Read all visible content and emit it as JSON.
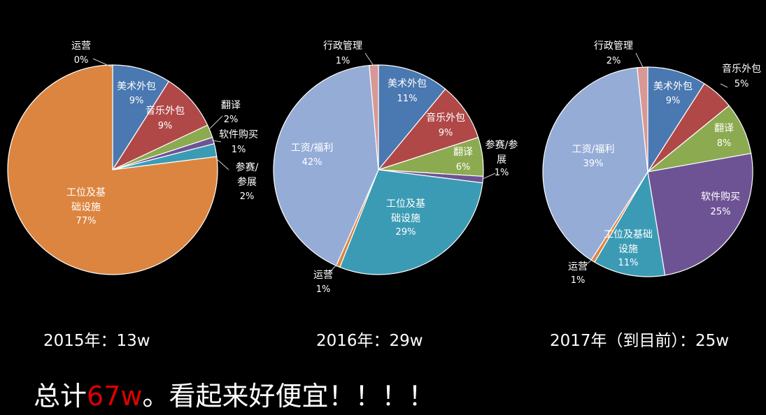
{
  "chart_data": [
    {
      "type": "pie",
      "caption": "2015年：13w",
      "slices": [
        {
          "label": "运营",
          "value": 0,
          "pct": "0%",
          "color": "#f0f0f0"
        },
        {
          "label": "美术外包",
          "value": 9,
          "pct": "9%",
          "color": "#4a78b0"
        },
        {
          "label": "音乐外包",
          "value": 9,
          "pct": "9%",
          "color": "#b04848"
        },
        {
          "label": "翻译",
          "value": 2,
          "pct": "2%",
          "color": "#8caa50"
        },
        {
          "label": "软件购买",
          "value": 1,
          "pct": "1%",
          "color": "#6e5394"
        },
        {
          "label": "参赛/参展",
          "value": 2,
          "pct": "2%",
          "color": "#3c9bb4"
        },
        {
          "label": "工位及基础设施",
          "value": 77,
          "pct": "77%",
          "color": "#dc8540"
        }
      ]
    },
    {
      "type": "pie",
      "caption": "2016年：29w",
      "slices": [
        {
          "label": "美术外包",
          "value": 11,
          "pct": "11%",
          "color": "#4a78b0"
        },
        {
          "label": "音乐外包",
          "value": 9,
          "pct": "9%",
          "color": "#b04848"
        },
        {
          "label": "翻译",
          "value": 6,
          "pct": "6%",
          "color": "#8caa50"
        },
        {
          "label": "参赛/参展",
          "value": 1,
          "pct": "1%",
          "color": "#6e5394"
        },
        {
          "label": "工位及基础设施",
          "value": 29,
          "pct": "29%",
          "color": "#3c9bb4"
        },
        {
          "label": "运营",
          "value": 0.6,
          "pct": "1%",
          "color": "#dc8540"
        },
        {
          "label": "工资/福利",
          "value": 42,
          "pct": "42%",
          "color": "#95acd6"
        },
        {
          "label": "行政管理",
          "value": 1.4,
          "pct": "1%",
          "color": "#d79896"
        }
      ]
    },
    {
      "type": "pie",
      "caption": "2017年（到目前）：25w",
      "slices": [
        {
          "label": "美术外包",
          "value": 9,
          "pct": "9%",
          "color": "#4a78b0"
        },
        {
          "label": "音乐外包",
          "value": 5,
          "pct": "5%",
          "color": "#b04848"
        },
        {
          "label": "翻译",
          "value": 8,
          "pct": "8%",
          "color": "#8caa50"
        },
        {
          "label": "软件购买",
          "value": 25,
          "pct": "25%",
          "color": "#6e5394"
        },
        {
          "label": "工位及基础设施",
          "value": 11,
          "pct": "11%",
          "color": "#3c9bb4"
        },
        {
          "label": "运营",
          "value": 0.6,
          "pct": "1%",
          "color": "#dc8540"
        },
        {
          "label": "工资/福利",
          "value": 39,
          "pct": "39%",
          "color": "#95acd6"
        },
        {
          "label": "行政管理",
          "value": 1.6,
          "pct": "2%",
          "color": "#d79896"
        }
      ]
    }
  ],
  "summary": {
    "prefix": "总计",
    "highlight": "67w",
    "suffix": "。看起来好便宜！！！！"
  }
}
